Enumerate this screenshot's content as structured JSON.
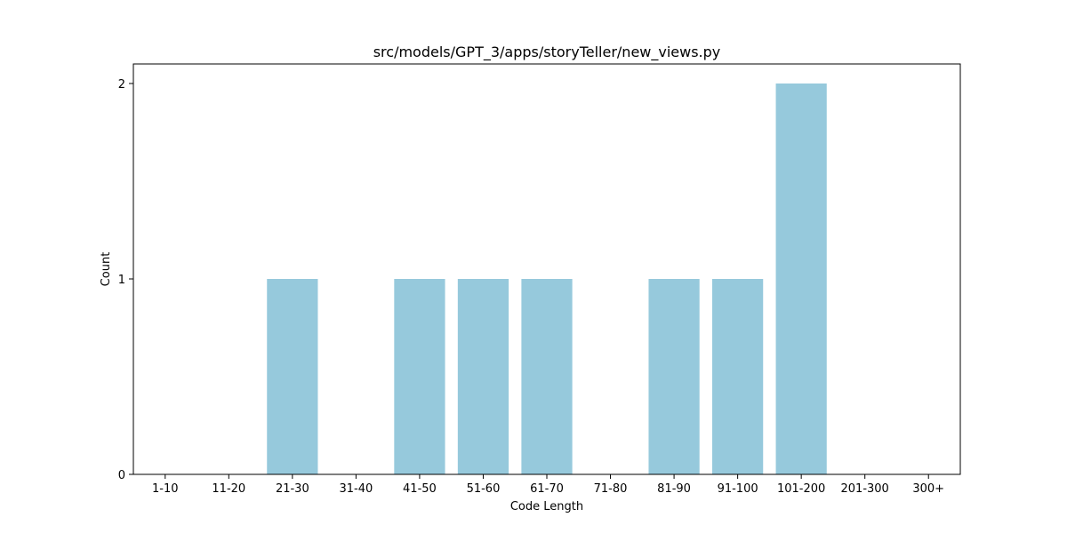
{
  "chart_data": {
    "type": "bar",
    "title": "src/models/GPT_3/apps/storyTeller/new_views.py",
    "xlabel": "Code Length",
    "ylabel": "Count",
    "categories": [
      "1-10",
      "11-20",
      "21-30",
      "31-40",
      "41-50",
      "51-60",
      "61-70",
      "71-80",
      "81-90",
      "91-100",
      "101-200",
      "201-300",
      "300+"
    ],
    "values": [
      0,
      0,
      1,
      0,
      1,
      1,
      1,
      0,
      1,
      1,
      2,
      0,
      0
    ],
    "ylim": [
      0,
      2.1
    ],
    "yticks": [
      0,
      1,
      2
    ],
    "bar_color": "#96c9dc",
    "grid": false,
    "legend": "none"
  }
}
